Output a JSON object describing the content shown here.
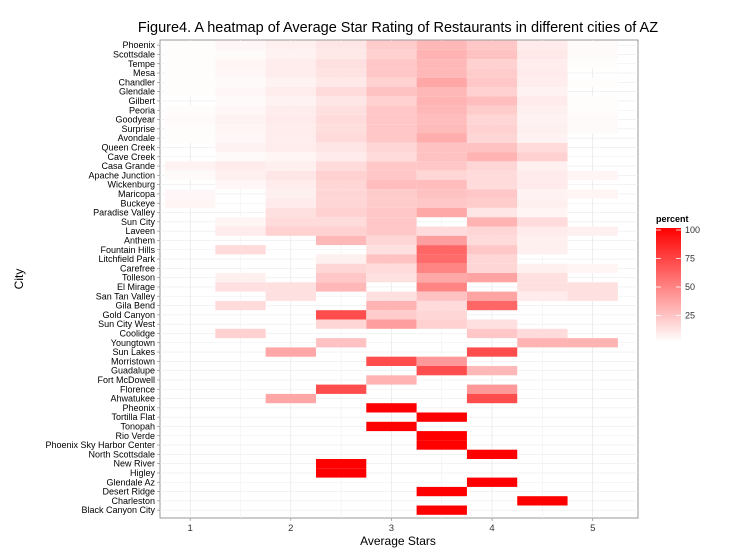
{
  "chart_data": {
    "type": "heatmap",
    "title": "Figure4. A heatmap of Average Star Rating of Restaurants in different cities of AZ",
    "xlabel": "Average Stars",
    "ylabel": "City",
    "x_ticks": [
      1,
      2,
      3,
      4,
      5
    ],
    "x_bins": [
      1.0,
      1.5,
      2.0,
      2.5,
      3.0,
      3.5,
      4.0,
      4.5,
      5.0
    ],
    "xlim": [
      0.7,
      5.45
    ],
    "grid": true,
    "legend": {
      "title": "percent",
      "placement": "right",
      "ticks": [
        25,
        50,
        75,
        100
      ],
      "range": [
        0,
        100
      ],
      "color_low": "#ffffff",
      "color_high": "#ff0000"
    },
    "cities": [
      "Phoenix",
      "Scottsdale",
      "Tempe",
      "Mesa",
      "Chandler",
      "Glendale",
      "Gilbert",
      "Peoria",
      "Goodyear",
      "Surprise",
      "Avondale",
      "Queen Creek",
      "Cave Creek",
      "Casa Grande",
      "Apache Junction",
      "Wickenburg",
      "Maricopa",
      "Buckeye",
      "Paradise Valley",
      "Sun City",
      "Laveen",
      "Anthem",
      "Fountain Hills",
      "Litchfield Park",
      "Carefree",
      "Tolleson",
      "El Mirage",
      "San Tan Valley",
      "Gila Bend",
      "Gold Canyon",
      "Sun City West",
      "Coolidge",
      "Youngtown",
      "Sun Lakes",
      "Morristown",
      "Guadalupe",
      "Fort McDowell",
      "Florence",
      "Ahwatukee",
      "Pheonix",
      "Tortilla Flat",
      "Tonopah",
      "Rio Verde",
      "Phoenix Sky Harbor Center",
      "North Scottsdale",
      "New River",
      "Higley",
      "Glendale Az",
      "Desert Ridge",
      "Charleston",
      "Black Canyon City"
    ],
    "values": [
      [
        1,
        3,
        6,
        10,
        20,
        28,
        22,
        8,
        2
      ],
      [
        1,
        2,
        5,
        9,
        18,
        30,
        24,
        9,
        2
      ],
      [
        1,
        4,
        7,
        12,
        22,
        28,
        18,
        7,
        1
      ],
      [
        1,
        3,
        7,
        11,
        22,
        28,
        20,
        8,
        0
      ],
      [
        1,
        2,
        5,
        9,
        18,
        35,
        22,
        7,
        1
      ],
      [
        1,
        3,
        7,
        14,
        24,
        28,
        18,
        5,
        0
      ],
      [
        0,
        2,
        5,
        10,
        18,
        30,
        26,
        8,
        1
      ],
      [
        1,
        3,
        7,
        12,
        22,
        28,
        20,
        6,
        1
      ],
      [
        2,
        5,
        8,
        14,
        22,
        26,
        16,
        5,
        2
      ],
      [
        1,
        4,
        7,
        13,
        22,
        27,
        18,
        6,
        2
      ],
      [
        1,
        3,
        7,
        14,
        22,
        32,
        16,
        5,
        0
      ],
      [
        0,
        5,
        7,
        10,
        16,
        24,
        24,
        14,
        0
      ],
      [
        0,
        2,
        4,
        8,
        14,
        24,
        30,
        18,
        0
      ],
      [
        5,
        8,
        6,
        14,
        22,
        22,
        16,
        6,
        0
      ],
      [
        2,
        6,
        10,
        18,
        22,
        16,
        14,
        8,
        4
      ],
      [
        0,
        3,
        7,
        16,
        26,
        26,
        14,
        8,
        0
      ],
      [
        3,
        0,
        6,
        16,
        20,
        24,
        22,
        5,
        4
      ],
      [
        4,
        0,
        8,
        16,
        20,
        22,
        20,
        6,
        0
      ],
      [
        0,
        0,
        12,
        18,
        22,
        34,
        10,
        4,
        0
      ],
      [
        0,
        4,
        14,
        14,
        22,
        0,
        30,
        14,
        0
      ],
      [
        0,
        8,
        18,
        18,
        22,
        14,
        16,
        8,
        6
      ],
      [
        0,
        0,
        0,
        28,
        16,
        38,
        14,
        6,
        0
      ],
      [
        0,
        14,
        0,
        0,
        12,
        60,
        22,
        6,
        0
      ],
      [
        0,
        0,
        0,
        6,
        24,
        58,
        16,
        0,
        0
      ],
      [
        0,
        0,
        0,
        16,
        14,
        48,
        16,
        6,
        4
      ],
      [
        0,
        6,
        0,
        22,
        12,
        34,
        36,
        12,
        0
      ],
      [
        0,
        12,
        12,
        28,
        0,
        48,
        0,
        12,
        12
      ],
      [
        0,
        0,
        12,
        0,
        12,
        24,
        36,
        8,
        12
      ],
      [
        0,
        14,
        0,
        0,
        30,
        14,
        60,
        0,
        0
      ],
      [
        0,
        0,
        0,
        70,
        20,
        16,
        0,
        0,
        0
      ],
      [
        0,
        0,
        0,
        16,
        38,
        18,
        12,
        0,
        0
      ],
      [
        0,
        18,
        0,
        0,
        0,
        0,
        22,
        14,
        0
      ],
      [
        0,
        0,
        0,
        24,
        0,
        0,
        0,
        30,
        30
      ],
      [
        0,
        0,
        35,
        0,
        0,
        0,
        70,
        0,
        0
      ],
      [
        0,
        0,
        0,
        0,
        70,
        40,
        0,
        0,
        0
      ],
      [
        0,
        0,
        0,
        0,
        0,
        70,
        28,
        0,
        0
      ],
      [
        0,
        0,
        0,
        0,
        30,
        0,
        0,
        0,
        0
      ],
      [
        0,
        0,
        0,
        70,
        0,
        0,
        40,
        0,
        0
      ],
      [
        0,
        0,
        35,
        0,
        0,
        0,
        70,
        0,
        0
      ],
      [
        0,
        0,
        0,
        0,
        100,
        0,
        0,
        0,
        0
      ],
      [
        0,
        0,
        0,
        0,
        0,
        100,
        0,
        0,
        0
      ],
      [
        0,
        0,
        0,
        0,
        100,
        0,
        0,
        0,
        0
      ],
      [
        0,
        0,
        0,
        0,
        0,
        100,
        0,
        0,
        0
      ],
      [
        0,
        0,
        0,
        0,
        0,
        100,
        0,
        0,
        0
      ],
      [
        0,
        0,
        0,
        0,
        0,
        0,
        100,
        0,
        0
      ],
      [
        0,
        0,
        0,
        100,
        0,
        0,
        0,
        0,
        0
      ],
      [
        0,
        0,
        0,
        100,
        0,
        0,
        0,
        0,
        0
      ],
      [
        0,
        0,
        0,
        0,
        0,
        0,
        100,
        0,
        0
      ],
      [
        0,
        0,
        0,
        0,
        0,
        100,
        0,
        0,
        0
      ],
      [
        0,
        0,
        0,
        0,
        0,
        0,
        0,
        100,
        0
      ],
      [
        0,
        0,
        0,
        0,
        0,
        100,
        0,
        0,
        0
      ]
    ]
  }
}
